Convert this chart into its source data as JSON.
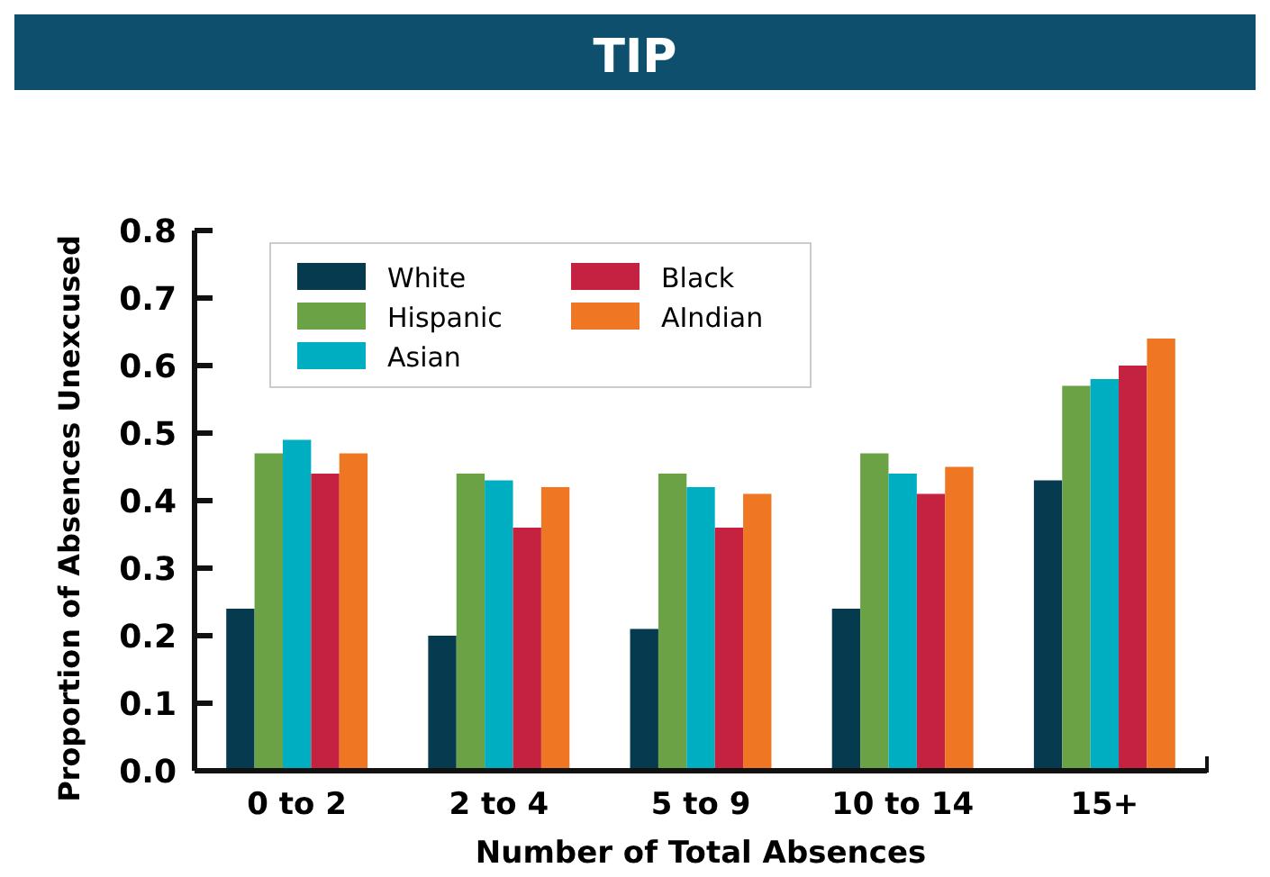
{
  "chart_data": {
    "type": "bar",
    "title": "TIP",
    "xlabel": "Number of Total Absences",
    "ylabel": "Proportion of Absences Unexcused",
    "categories": [
      "0 to 2",
      "2 to 4",
      "5 to 9",
      "10 to 14",
      "15+"
    ],
    "series": [
      {
        "name": "White",
        "color": "#053a4f",
        "values": [
          0.24,
          0.2,
          0.21,
          0.24,
          0.43
        ]
      },
      {
        "name": "Hispanic",
        "color": "#6aa245",
        "values": [
          0.47,
          0.44,
          0.44,
          0.47,
          0.57
        ]
      },
      {
        "name": "Asian",
        "color": "#00aec2",
        "values": [
          0.49,
          0.43,
          0.42,
          0.44,
          0.58
        ]
      },
      {
        "name": "Black",
        "color": "#c52140",
        "values": [
          0.44,
          0.36,
          0.36,
          0.41,
          0.6
        ]
      },
      {
        "name": "AIndian",
        "color": "#ef7622",
        "values": [
          0.47,
          0.42,
          0.41,
          0.45,
          0.64
        ]
      }
    ],
    "ylim": [
      0,
      0.8
    ],
    "yticks": [
      {
        "value": 0,
        "label": "0.0"
      },
      0.1,
      0.2,
      0.3,
      0.4,
      0.5,
      0.6,
      0.7,
      0.8
    ],
    "grid": false,
    "legend": "top left"
  }
}
